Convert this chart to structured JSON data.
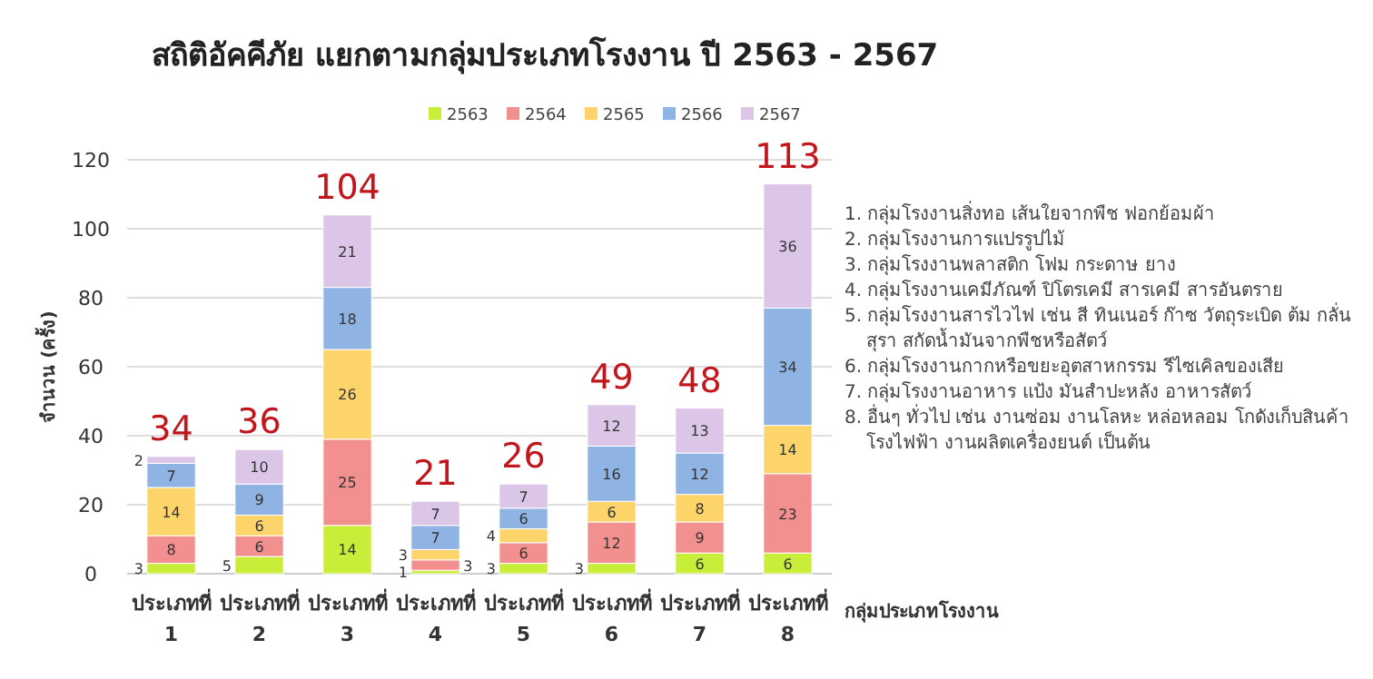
{
  "chart_data": {
    "type": "bar",
    "stacked": true,
    "title": "สถิติอัคคีภัย แยกตามกลุ่มประเภทโรงงาน ปี 2563 - 2567",
    "xlabel": "กลุ่มประเภทโรงงาน",
    "ylabel": "จำนวน (ครั้ง)",
    "categories": [
      "ประเภทที่ 1",
      "ประเภทที่ 2",
      "ประเภทที่ 3",
      "ประเภทที่ 4",
      "ประเภทที่ 5",
      "ประเภทที่ 6",
      "ประเภทที่ 7",
      "ประเภทที่ 8"
    ],
    "series": [
      {
        "name": "2563",
        "color": "#c8ee3a",
        "values": [
          3,
          5,
          14,
          1,
          3,
          3,
          6,
          6
        ]
      },
      {
        "name": "2564",
        "color": "#f29090",
        "values": [
          8,
          6,
          25,
          3,
          6,
          12,
          9,
          23
        ]
      },
      {
        "name": "2565",
        "color": "#fcd46a",
        "values": [
          14,
          6,
          26,
          3,
          4,
          6,
          8,
          14
        ]
      },
      {
        "name": "2566",
        "color": "#8fb3e2",
        "values": [
          7,
          9,
          18,
          7,
          6,
          16,
          12,
          34
        ]
      },
      {
        "name": "2567",
        "color": "#dcc6e8",
        "values": [
          2,
          10,
          21,
          7,
          7,
          12,
          13,
          36
        ]
      }
    ],
    "totals": [
      "34",
      "36",
      "104",
      "21",
      "26",
      "49",
      "48",
      "113"
    ],
    "data_labels": true,
    "ylim": [
      0,
      120
    ],
    "yticks": [
      0,
      20,
      40,
      60,
      80,
      100,
      120
    ],
    "grid": "y",
    "legend": "top",
    "annotations": [
      "1. กลุ่มโรงงานสิ่งทอ เส้นใยจากพืช ฟอกย้อมผ้า",
      "2. กลุ่มโรงงานการแปรรูปไม้",
      "3. กลุ่มโรงงานพลาสติก โฟม กระดาษ ยาง",
      "4. กลุ่มโรงงานเคมีภัณฑ์ ปิโตรเคมี สารเคมี สารอันตราย",
      "5. กลุ่มโรงงานสารไวไฟ เช่น สี ทินเนอร์ ก๊าซ วัตถุระเบิด ต้ม กลั่นสุรา สกัดน้ำมันจากพืชหรือสัตว์",
      "6. กลุ่มโรงงานกากหรือขยะอุตสาหกรรม รีไซเคิลของเสีย",
      "7. กลุ่มโรงงานอาหาร แป้ง มันสำปะหลัง อาหารสัตว์",
      "8. อื่นๆ ทั่วไป เช่น งานซ่อม งานโลหะ หล่อหลอม โกดังเก็บสินค้า โรงไฟฟ้า งานผลิตเครื่องยนต์ เป็นต้น"
    ]
  }
}
